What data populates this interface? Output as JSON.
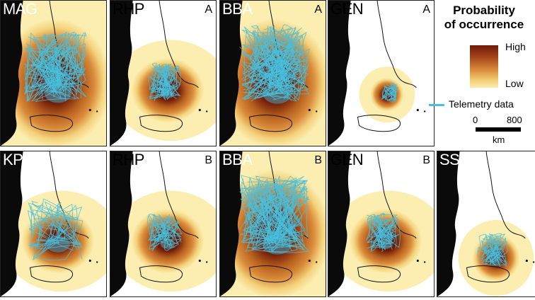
{
  "figure": {
    "colors": {
      "high": "#6e1a08",
      "mid": "#d98b3a",
      "low": "#fbeeb0",
      "telemetry": "#46c1de",
      "land": "#0a0a0a"
    },
    "panels": [
      {
        "id": "mag",
        "species": "MAG",
        "variant": "",
        "row": 0,
        "col": 0,
        "hotspot": "wide",
        "tracks": "dense-mag"
      },
      {
        "id": "rhp-a",
        "species": "RHP",
        "variant": "A",
        "row": 0,
        "col": 1,
        "hotspot": "medium",
        "tracks": "cluster"
      },
      {
        "id": "bba-a",
        "species": "BBA",
        "variant": "A",
        "row": 0,
        "col": 2,
        "hotspot": "wide",
        "tracks": "dense-bba"
      },
      {
        "id": "gen-a",
        "species": "GEN",
        "variant": "A",
        "row": 0,
        "col": 3,
        "hotspot": "small",
        "tracks": "tiny"
      },
      {
        "id": "kp",
        "species": "KP",
        "variant": "",
        "row": 1,
        "col": 0,
        "hotspot": "medium",
        "tracks": "kp"
      },
      {
        "id": "rhp-b",
        "species": "RHP",
        "variant": "B",
        "row": 1,
        "col": 1,
        "hotspot": "medium",
        "tracks": "cluster"
      },
      {
        "id": "bba-b",
        "species": "BBA",
        "variant": "B",
        "row": 1,
        "col": 2,
        "hotspot": "wide",
        "tracks": "dense-bba"
      },
      {
        "id": "gen-b",
        "species": "GEN",
        "variant": "B",
        "row": 1,
        "col": 3,
        "hotspot": "medium",
        "tracks": "cluster"
      },
      {
        "id": "ssw",
        "species": "SSW",
        "variant": "",
        "row": 1,
        "col": 4,
        "hotspot": "small",
        "tracks": "ssw"
      }
    ]
  },
  "legend": {
    "title_line1": "Probability",
    "title_line2": "of occurrence",
    "high_label": "High",
    "low_label": "Low",
    "telemetry_label": "Telemetry data",
    "scale_zero": "0",
    "scale_max": "800",
    "scale_unit": "km"
  }
}
